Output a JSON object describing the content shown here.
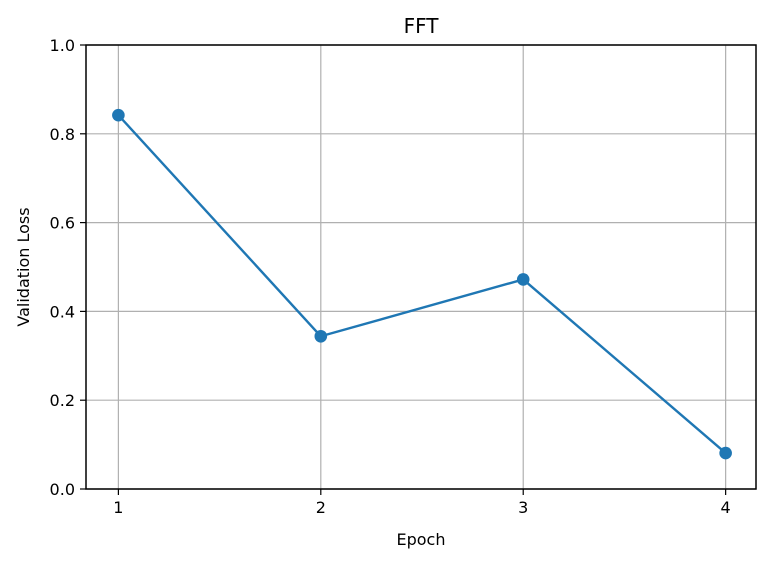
{
  "chart_data": {
    "type": "line",
    "title": "FFT",
    "xlabel": "Epoch",
    "ylabel": "Validation Loss",
    "x": [
      1,
      2,
      3,
      4
    ],
    "series": [
      {
        "values": [
          0.842,
          0.344,
          0.472,
          0.081
        ],
        "color": "#1f77b4",
        "marker": "circle"
      }
    ],
    "xlim": [
      0.84,
      4.15
    ],
    "ylim": [
      0.0,
      1.0
    ],
    "xticks": [
      1,
      2,
      3,
      4
    ],
    "xtick_labels": [
      "1",
      "2",
      "3",
      "4"
    ],
    "yticks": [
      0.0,
      0.2,
      0.4,
      0.6,
      0.8,
      1.0
    ],
    "ytick_labels": [
      "0.0",
      "0.2",
      "0.4",
      "0.6",
      "0.8",
      "1.0"
    ],
    "grid": true,
    "grid_color": "#b0b0b0",
    "axis_color": "#000000"
  }
}
